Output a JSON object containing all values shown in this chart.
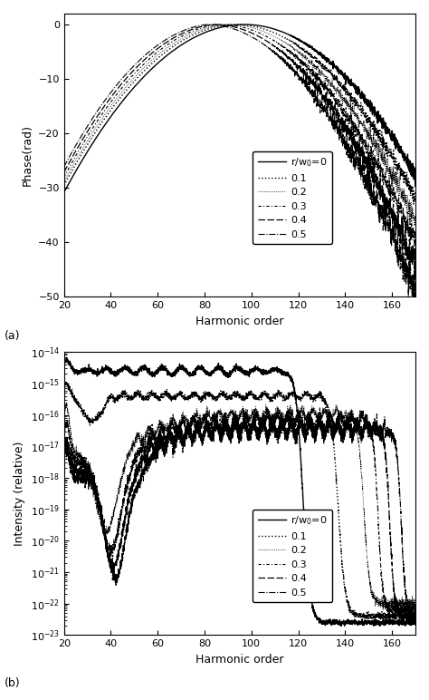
{
  "fig_width": 4.74,
  "fig_height": 7.72,
  "dpi": 100,
  "panel_a": {
    "xlabel": "Harmonic order",
    "ylabel": "Phase(rad)",
    "xlim": [
      20,
      170
    ],
    "ylim": [
      -50,
      2
    ],
    "xticks": [
      20,
      40,
      60,
      80,
      100,
      120,
      140,
      160
    ],
    "yticks": [
      0,
      -10,
      -20,
      -30,
      -40,
      -50
    ],
    "label": "(a)"
  },
  "panel_b": {
    "xlabel": "Harmonic order",
    "ylabel": "Intensity (relative)",
    "xlim": [
      20,
      170
    ],
    "ylim_exp": [
      -23,
      -14
    ],
    "xticks": [
      20,
      40,
      60,
      80,
      100,
      120,
      140,
      160
    ],
    "label": "(b)"
  }
}
